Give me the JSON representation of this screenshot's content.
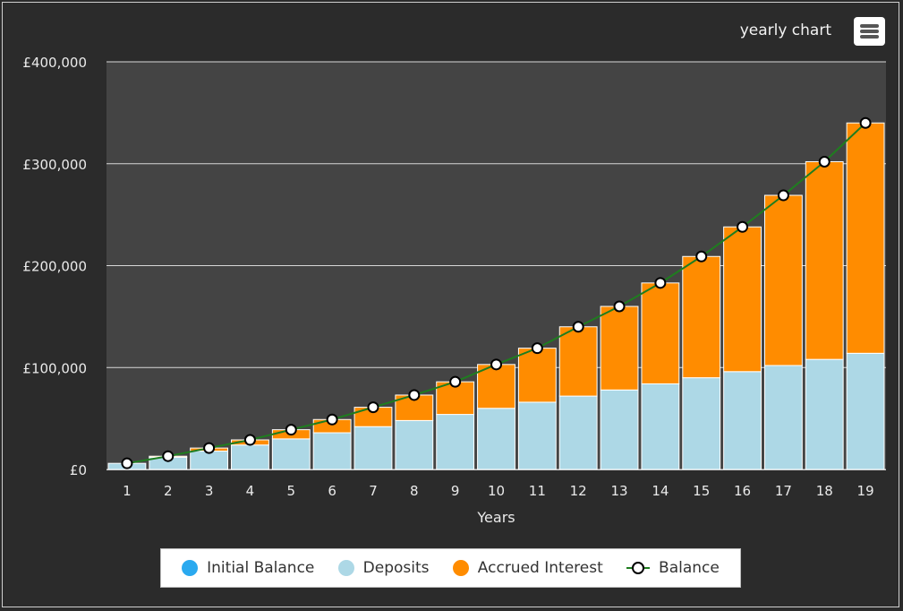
{
  "header": {
    "title": "yearly chart",
    "menu_icon": "hamburger-menu-icon"
  },
  "colors": {
    "background": "#2b2b2b",
    "plot_background": "#444444",
    "initial_balance": "#2aa9ef",
    "deposits": "#add8e6",
    "accrued_interest": "#ff8c00",
    "balance_line": "#1f7d1f"
  },
  "chart_data": {
    "type": "bar",
    "stacked": true,
    "title": "yearly chart",
    "xlabel": "Years",
    "ylabel": "",
    "ylim": [
      0,
      400000
    ],
    "y_ticks": [
      "£0",
      "£100,000",
      "£200,000",
      "£300,000",
      "£400,000"
    ],
    "y_tick_values": [
      0,
      100000,
      200000,
      300000,
      400000
    ],
    "grid": true,
    "legend_position": "bottom",
    "categories": [
      "1",
      "2",
      "3",
      "4",
      "5",
      "6",
      "7",
      "8",
      "9",
      "10",
      "11",
      "12",
      "13",
      "14",
      "15",
      "16",
      "17",
      "18",
      "19"
    ],
    "series": [
      {
        "name": "Initial Balance",
        "type": "bar",
        "values": [
          0,
          0,
          0,
          0,
          0,
          0,
          0,
          0,
          0,
          0,
          0,
          0,
          0,
          0,
          0,
          0,
          0,
          0,
          0
        ]
      },
      {
        "name": "Deposits",
        "type": "bar",
        "values": [
          6000,
          12000,
          18000,
          24000,
          30000,
          36000,
          42000,
          48000,
          54000,
          60000,
          66000,
          72000,
          78000,
          84000,
          90000,
          96000,
          102000,
          108000,
          114000
        ]
      },
      {
        "name": "Accrued Interest",
        "type": "bar",
        "values": [
          0,
          1000,
          3000,
          5000,
          9000,
          13000,
          19000,
          25000,
          32000,
          43000,
          53000,
          68000,
          82000,
          99000,
          119000,
          142000,
          167000,
          194000,
          226000
        ]
      },
      {
        "name": "Balance",
        "type": "line",
        "values": [
          6000,
          13000,
          21000,
          29000,
          39000,
          49000,
          61000,
          73000,
          86000,
          103000,
          119000,
          140000,
          160000,
          183000,
          209000,
          238000,
          269000,
          302000,
          340000
        ]
      }
    ]
  },
  "legend": [
    {
      "label": "Initial Balance",
      "kind": "dot",
      "color": "#2aa9ef"
    },
    {
      "label": "Deposits",
      "kind": "dot",
      "color": "#add8e6"
    },
    {
      "label": "Accrued Interest",
      "kind": "dot",
      "color": "#ff8c00"
    },
    {
      "label": "Balance",
      "kind": "line",
      "color": "#1f7d1f"
    }
  ]
}
